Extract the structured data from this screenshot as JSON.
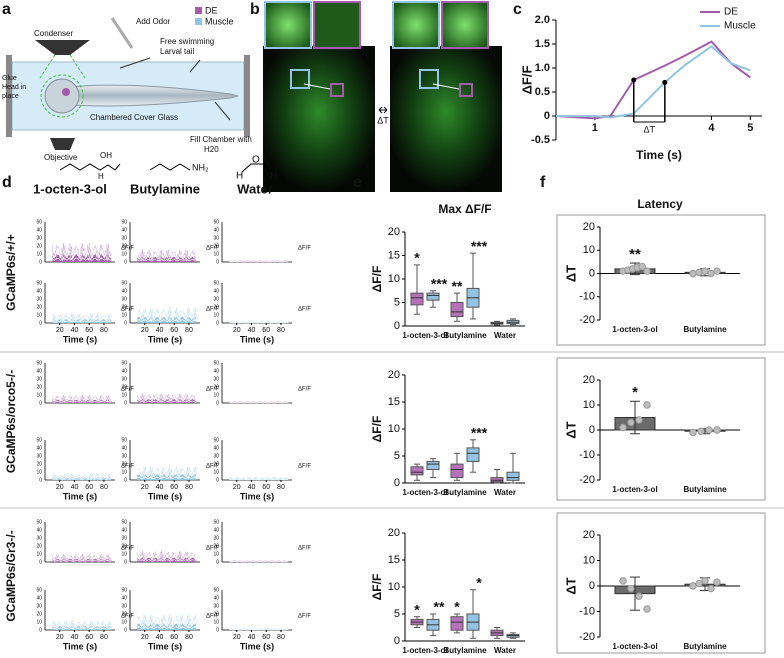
{
  "panel_labels": [
    "a",
    "b",
    "c",
    "d",
    "e",
    "f"
  ],
  "a": {
    "legend": [
      {
        "name": "DE",
        "color": "#a35ca9"
      },
      {
        "name": "Muscle",
        "color": "#92c5e4"
      }
    ],
    "add_odor": "Add Odor",
    "free_swimming": [
      "Free swimming",
      "Larval tail"
    ],
    "condenser": "Condenser",
    "glue": [
      "Glue",
      "Head in",
      "place"
    ],
    "cover_glass": "Chambered Cover Glass",
    "objective": "Objective",
    "fill": [
      "Fill Chamber with",
      "H20"
    ]
  },
  "b": {
    "delta": "ΔT"
  },
  "chart_data": {
    "type": "line",
    "x": [
      0,
      1,
      1.4,
      2,
      2.8,
      3.3,
      4,
      4.5,
      5
    ],
    "series": [
      {
        "name": "DE",
        "color": "#a35ca9",
        "values": [
          0,
          -0.05,
          0,
          0.75,
          1.05,
          1.25,
          1.55,
          1.1,
          0.8
        ]
      },
      {
        "name": "Muscle",
        "color": "#92c5e4",
        "values": [
          0,
          0,
          -0.03,
          0.05,
          0.7,
          1.05,
          1.45,
          1.1,
          0.95
        ]
      }
    ],
    "xlim": [
      0,
      5.3
    ],
    "xticks": [
      1,
      4,
      5
    ],
    "ylim": [
      -0.5,
      2
    ],
    "yticks": [
      -0.5,
      0,
      {
        "value": 0.5,
        "label": "0.5"
      },
      {
        "value": 1,
        "label": "1.0"
      },
      {
        "value": 1.5,
        "label": "1.5"
      },
      {
        "value": 2,
        "label": "2.0"
      }
    ],
    "xlabel": "Time (s)",
    "ylabel": "ΔF/F",
    "bracket": "ΔT",
    "legend": "upper right"
  },
  "d": {
    "compounds": [
      "1-octen-3-ol",
      "Butylamine",
      "Water"
    ],
    "genotypes": [
      "GCaMP6s/+/+",
      "GCaMP6s/orco5-/-",
      "GCaMP6s/Gr3-/-"
    ],
    "ylim": [
      0,
      50
    ],
    "yticks": [
      0,
      10,
      20,
      30,
      40,
      50
    ],
    "xlim": [
      0,
      95
    ],
    "xticks": [
      20,
      40,
      60,
      80
    ],
    "xlabel": "Time (s)",
    "ylabel": "ΔF/F",
    "structures": {
      "octenol": [
        "OH",
        "H"
      ],
      "butylamine": [
        "NH₂"
      ],
      "water": [
        "H",
        "O",
        "H"
      ]
    }
  },
  "e": {
    "title": "Max ΔF/F",
    "ylabel": "ΔF/F",
    "categories": [
      "1-octen-3-ol",
      "Butylamine",
      "Water"
    ],
    "ylim": [
      0,
      20
    ],
    "yticks": [
      0,
      5,
      10,
      15,
      20
    ],
    "colors": [
      "#b572b8",
      "#93c2e2"
    ],
    "rows": [
      {
        "boxes": [
          [
            {
              "min": 2.5,
              "q1": 4.5,
              "median": 6,
              "q3": 7,
              "max": 13
            },
            {
              "min": 4,
              "q1": 5.5,
              "median": 6.5,
              "q3": 7,
              "max": 7.5
            }
          ],
          [
            {
              "min": 1,
              "q1": 2,
              "median": 3,
              "q3": 5,
              "max": 7
            },
            {
              "min": 1.5,
              "q1": 4,
              "median": 6,
              "q3": 8,
              "max": 15.5
            }
          ],
          [
            {
              "min": 0.2,
              "q1": 0.4,
              "median": 0.6,
              "q3": 0.8,
              "max": 1
            },
            {
              "min": 0.3,
              "q1": 0.5,
              "median": 0.8,
              "q3": 1.2,
              "max": 1.5
            }
          ]
        ],
        "stars": [
          [
            "*",
            "***"
          ],
          [
            "**",
            "***"
          ],
          [
            null,
            null
          ]
        ]
      },
      {
        "boxes": [
          [
            {
              "min": 0.5,
              "q1": 1.5,
              "median": 2,
              "q3": 3,
              "max": 3.5
            },
            {
              "min": 1,
              "q1": 2.5,
              "median": 3.5,
              "q3": 4,
              "max": 4.5
            }
          ],
          [
            {
              "min": 0.5,
              "q1": 1,
              "median": 2.5,
              "q3": 3.5,
              "max": 5.5
            },
            {
              "min": 2,
              "q1": 4,
              "median": 5.5,
              "q3": 6.5,
              "max": 8
            }
          ],
          [
            {
              "min": 0,
              "q1": 0.2,
              "median": 0.5,
              "q3": 1,
              "max": 2.5
            },
            {
              "min": 0,
              "q1": 0.5,
              "median": 1,
              "q3": 2,
              "max": 5.5
            }
          ]
        ],
        "stars": [
          [
            null,
            null
          ],
          [
            null,
            "***"
          ],
          [
            null,
            null
          ]
        ]
      },
      {
        "boxes": [
          [
            {
              "min": 2.5,
              "q1": 3,
              "median": 3.5,
              "q3": 4,
              "max": 4.5
            },
            {
              "min": 1,
              "q1": 2,
              "median": 3,
              "q3": 4,
              "max": 5
            }
          ],
          [
            {
              "min": 1.5,
              "q1": 2,
              "median": 3.5,
              "q3": 4.5,
              "max": 5
            },
            {
              "min": 0.5,
              "q1": 2,
              "median": 3.5,
              "q3": 5,
              "max": 9.5
            }
          ],
          [
            {
              "min": 0.5,
              "q1": 1,
              "median": 1.5,
              "q3": 2,
              "max": 2.5
            },
            {
              "min": 0.5,
              "q1": 0.7,
              "median": 1,
              "q3": 1.2,
              "max": 1.5
            }
          ]
        ],
        "stars": [
          [
            "*",
            "**"
          ],
          [
            "*",
            "*"
          ],
          [
            null,
            null
          ]
        ]
      }
    ]
  },
  "f": {
    "title": "Latency",
    "ylabel": "ΔT",
    "categories": [
      "1-octen-3-ol",
      "Butylamine"
    ],
    "ylim": [
      -20,
      20
    ],
    "yticks": [
      -20,
      -10,
      0,
      10,
      20
    ],
    "color": "#6b6b6b",
    "rows": [
      {
        "means": [
          2,
          0.5
        ],
        "errors": [
          2.5,
          1.5
        ],
        "stars": [
          "**",
          null
        ],
        "points": [
          [
            1,
            1.5,
            2,
            2.5,
            3,
            1
          ],
          [
            0,
            0.5,
            1,
            0,
            1
          ]
        ]
      },
      {
        "means": [
          5,
          -0.5
        ],
        "errors": [
          6.5,
          1
        ],
        "stars": [
          "*",
          null
        ],
        "points": [
          [
            1,
            3,
            4,
            10
          ],
          [
            -1,
            -0.5,
            0,
            0
          ]
        ]
      },
      {
        "means": [
          -3,
          0.7
        ],
        "errors": [
          6.5,
          2.5
        ],
        "stars": [
          null,
          null
        ],
        "points": [
          [
            2,
            -1,
            -4,
            -9
          ],
          [
            0,
            1,
            2,
            -1,
            1.5
          ]
        ]
      }
    ]
  }
}
